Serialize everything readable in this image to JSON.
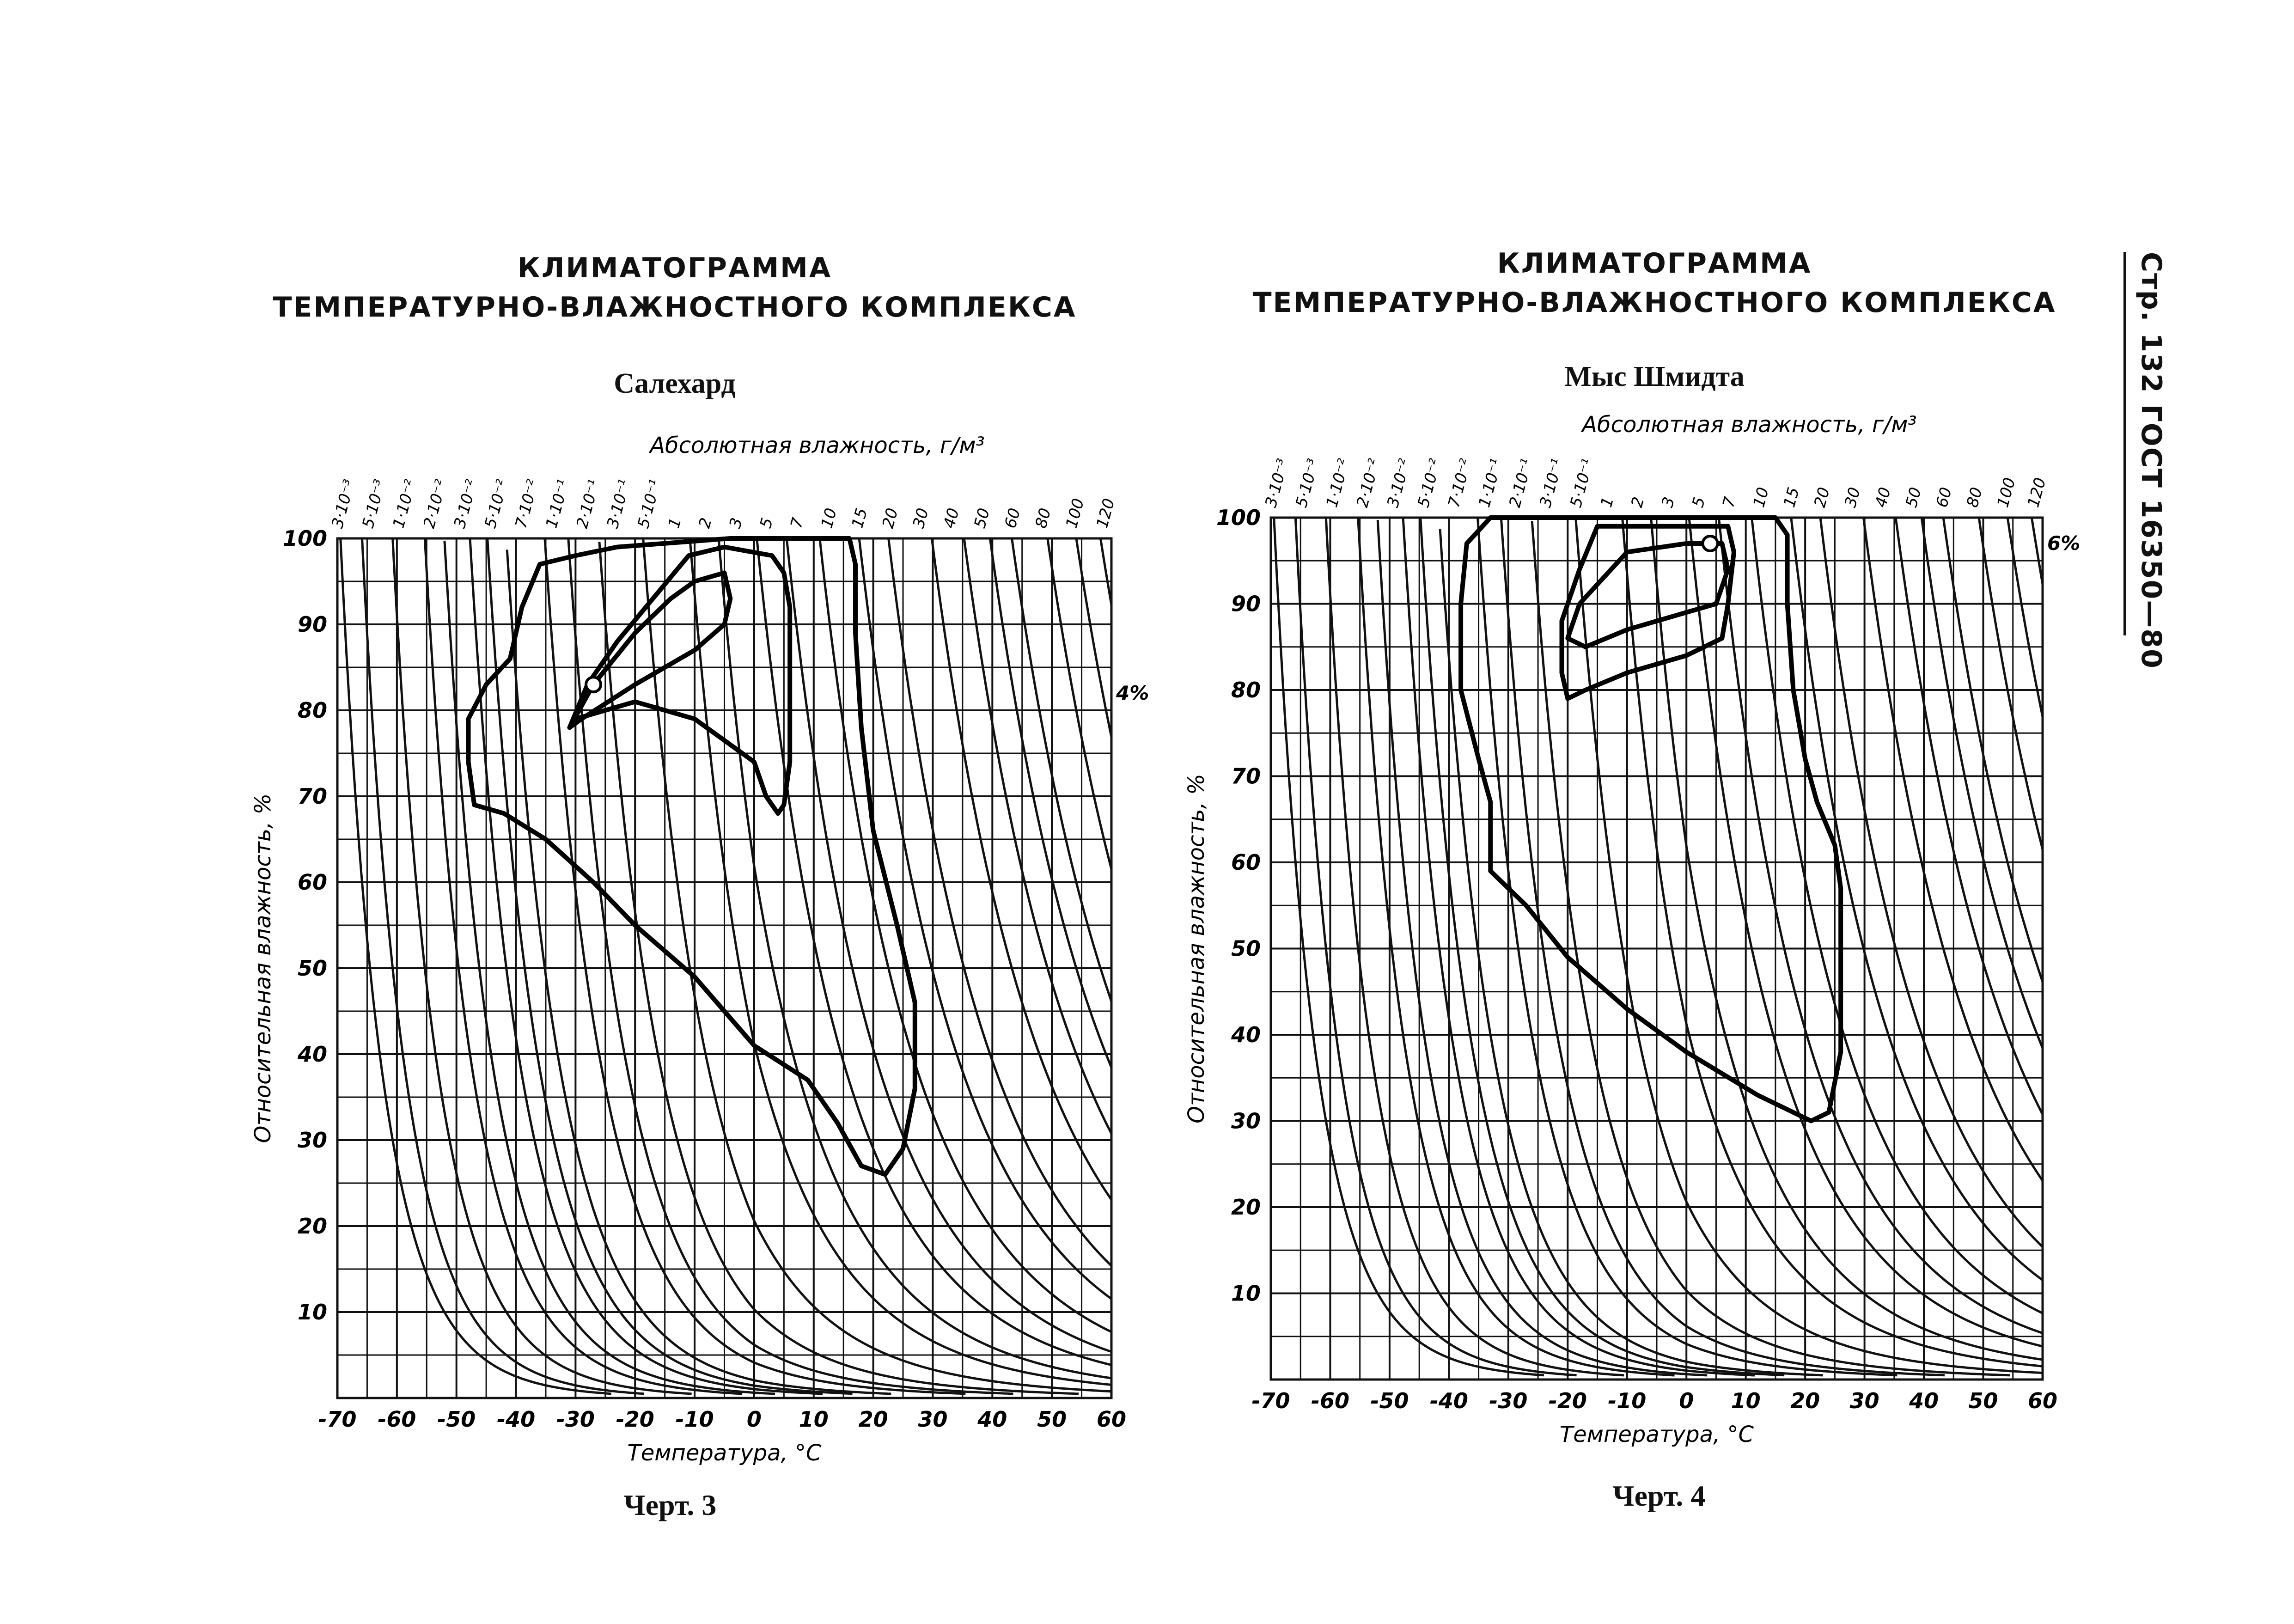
{
  "page_label": "Стр. 132 ГОСТ 16350—80",
  "chart_data": [
    {
      "type": "area",
      "heading_line1": "КЛИМАТОГРАММА",
      "heading_line2": "ТЕМПЕРАТУРНО-ВЛАЖНОСТНОГО КОМПЛЕКСА",
      "title": "Салехард",
      "caption": "Черт. 3",
      "xlabel": "Температура, °С",
      "ylabel": "Относительная влажность, %",
      "top_axis_label": "Абсолютная влажность, г/м³",
      "xlim": [
        -70,
        60
      ],
      "ylim": [
        0,
        100
      ],
      "x_ticks": [
        "-70",
        "-60",
        "-50",
        "-40",
        "-30",
        "-20",
        "-10",
        "0",
        "10",
        "20",
        "30",
        "40",
        "50",
        "60"
      ],
      "y_ticks": [
        "10",
        "20",
        "30",
        "40",
        "50",
        "60",
        "70",
        "80",
        "90",
        "100"
      ],
      "absolute_humidity_ticks": [
        "3·10⁻³",
        "5·10⁻³",
        "1·10⁻²",
        "2·10⁻²",
        "3·10⁻²",
        "5·10⁻²",
        "7·10⁻²",
        "1·10⁻¹",
        "2·10⁻¹",
        "3·10⁻¹",
        "5·10⁻¹",
        "1",
        "2",
        "3",
        "5",
        "7",
        "10",
        "15",
        "20",
        "30",
        "40",
        "50",
        "60",
        "80",
        "100",
        "120"
      ],
      "right_annotation": "4%",
      "contours": [
        {
          "level": "outer",
          "points": [
            [
              -23,
              99
            ],
            [
              -4,
              100
            ],
            [
              10,
              100
            ],
            [
              16,
              100
            ],
            [
              17,
              97
            ],
            [
              17,
              89
            ],
            [
              18,
              78
            ],
            [
              20,
              66
            ],
            [
              24,
              55
            ],
            [
              27,
              46
            ],
            [
              27,
              36
            ],
            [
              25,
              29
            ],
            [
              22,
              26
            ],
            [
              18,
              27
            ],
            [
              14,
              32
            ],
            [
              9,
              37
            ],
            [
              0,
              41
            ],
            [
              -10,
              49
            ],
            [
              -20,
              55
            ],
            [
              -27,
              60
            ],
            [
              -35,
              65
            ],
            [
              -42,
              68
            ],
            [
              -47,
              69
            ],
            [
              -48,
              74
            ],
            [
              -48,
              79
            ],
            [
              -45,
              83
            ],
            [
              -41,
              86
            ],
            [
              -39,
              92
            ],
            [
              -36,
              97
            ],
            [
              -30,
              98
            ],
            [
              -23,
              99
            ]
          ]
        },
        {
          "level": "middle",
          "points": [
            [
              -11,
              98
            ],
            [
              -5,
              99
            ],
            [
              3,
              98
            ],
            [
              5,
              96
            ],
            [
              6,
              92
            ],
            [
              6,
              86
            ],
            [
              6,
              80
            ],
            [
              6,
              74
            ],
            [
              5,
              69
            ],
            [
              4,
              68
            ],
            [
              2,
              70
            ],
            [
              0,
              74
            ],
            [
              -10,
              79
            ],
            [
              -20,
              81
            ],
            [
              -30,
              79
            ],
            [
              -31,
              78
            ],
            [
              -28,
              83
            ],
            [
              -23,
              88
            ],
            [
              -17,
              93
            ],
            [
              -11,
              98
            ]
          ]
        },
        {
          "level": "inner",
          "points": [
            [
              -10,
              95
            ],
            [
              -5,
              96
            ],
            [
              -4,
              93
            ],
            [
              -5,
              90
            ],
            [
              -10,
              87
            ],
            [
              -20,
              83
            ],
            [
              -29,
              79
            ],
            [
              -31,
              78
            ],
            [
              -27,
              83
            ],
            [
              -20,
              89
            ],
            [
              -14,
              93
            ],
            [
              -10,
              95
            ]
          ]
        }
      ],
      "marker": {
        "x": -27,
        "y": 83
      }
    },
    {
      "type": "area",
      "heading_line1": "КЛИМАТОГРАММА",
      "heading_line2": "ТЕМПЕРАТУРНО-ВЛАЖНОСТНОГО КОМПЛЕКСА",
      "title": "Мыс Шмидта",
      "caption": "Черт. 4",
      "xlabel": "Температура, °С",
      "ylabel": "Относительная влажность, %",
      "top_axis_label": "Абсолютная влажность, г/м³",
      "xlim": [
        -70,
        60
      ],
      "ylim": [
        0,
        100
      ],
      "x_ticks": [
        "-70",
        "-60",
        "-50",
        "-40",
        "-30",
        "-20",
        "-10",
        "0",
        "10",
        "20",
        "30",
        "40",
        "50",
        "60"
      ],
      "y_ticks": [
        "10",
        "20",
        "30",
        "40",
        "50",
        "60",
        "70",
        "80",
        "90",
        "100"
      ],
      "absolute_humidity_ticks": [
        "3·10⁻³",
        "5·10⁻³",
        "1·10⁻²",
        "2·10⁻²",
        "3·10⁻²",
        "5·10⁻²",
        "7·10⁻²",
        "1·10⁻¹",
        "2·10⁻¹",
        "3·10⁻¹",
        "5·10⁻¹",
        "1",
        "2",
        "3",
        "5",
        "7",
        "10",
        "15",
        "20",
        "30",
        "40",
        "50",
        "60",
        "80",
        "100",
        "120"
      ],
      "right_annotation": "6%",
      "contours": [
        {
          "level": "outer",
          "points": [
            [
              -33,
              100
            ],
            [
              -15,
              100
            ],
            [
              0,
              100
            ],
            [
              15,
              100
            ],
            [
              17,
              98
            ],
            [
              17,
              90
            ],
            [
              18,
              80
            ],
            [
              20,
              72
            ],
            [
              22,
              67
            ],
            [
              25,
              62
            ],
            [
              26,
              57
            ],
            [
              26,
              48
            ],
            [
              26,
              38
            ],
            [
              24,
              31
            ],
            [
              21,
              30
            ],
            [
              12,
              33
            ],
            [
              0,
              38
            ],
            [
              -10,
              43
            ],
            [
              -20,
              49
            ],
            [
              -27,
              55
            ],
            [
              -33,
              59
            ],
            [
              -33,
              67
            ],
            [
              -35,
              72
            ],
            [
              -38,
              80
            ],
            [
              -38,
              90
            ],
            [
              -37,
              97
            ],
            [
              -33,
              100
            ]
          ]
        },
        {
          "level": "middle",
          "points": [
            [
              -15,
              99
            ],
            [
              0,
              99
            ],
            [
              7,
              99
            ],
            [
              8,
              96
            ],
            [
              7,
              90
            ],
            [
              6,
              86
            ],
            [
              0,
              84
            ],
            [
              -10,
              82
            ],
            [
              -17,
              80
            ],
            [
              -20,
              79
            ],
            [
              -21,
              82
            ],
            [
              -21,
              88
            ],
            [
              -18,
              94
            ],
            [
              -15,
              99
            ]
          ]
        },
        {
          "level": "inner",
          "points": [
            [
              -10,
              96
            ],
            [
              0,
              97
            ],
            [
              6,
              97
            ],
            [
              7,
              94
            ],
            [
              5,
              90
            ],
            [
              0,
              89
            ],
            [
              -10,
              87
            ],
            [
              -17,
              85
            ],
            [
              -20,
              86
            ],
            [
              -18,
              90
            ],
            [
              -14,
              93
            ],
            [
              -10,
              96
            ]
          ]
        }
      ],
      "marker": {
        "x": 4,
        "y": 97
      }
    }
  ]
}
